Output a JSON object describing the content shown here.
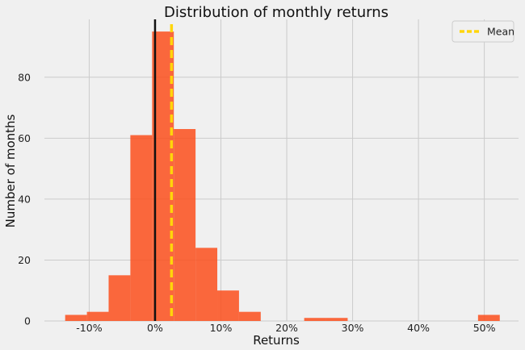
{
  "chart_data": {
    "type": "bar",
    "title": "Distribution of monthly returns",
    "xlabel": "Returns",
    "ylabel": "Number of months",
    "xlim": [
      -0.168,
      0.552
    ],
    "ylim": [
      0,
      99
    ],
    "x_ticks": [
      {
        "value": -0.1,
        "label": "-10%"
      },
      {
        "value": 0.0,
        "label": "0%"
      },
      {
        "value": 0.1,
        "label": "10%"
      },
      {
        "value": 0.2,
        "label": "20%"
      },
      {
        "value": 0.3,
        "label": "30%"
      },
      {
        "value": 0.4,
        "label": "40%"
      },
      {
        "value": 0.5,
        "label": "50%"
      }
    ],
    "y_ticks": [
      {
        "value": 0,
        "label": "0"
      },
      {
        "value": 20,
        "label": "20"
      },
      {
        "value": 40,
        "label": "40"
      },
      {
        "value": 60,
        "label": "60"
      },
      {
        "value": 80,
        "label": "80"
      }
    ],
    "bins": [
      {
        "x0": -0.1365,
        "x1": -0.1035,
        "count": 2
      },
      {
        "x0": -0.1035,
        "x1": -0.0705,
        "count": 3
      },
      {
        "x0": -0.0705,
        "x1": -0.0375,
        "count": 15
      },
      {
        "x0": -0.0375,
        "x1": -0.0045,
        "count": 61
      },
      {
        "x0": -0.0045,
        "x1": 0.0285,
        "count": 95
      },
      {
        "x0": 0.0285,
        "x1": 0.0615,
        "count": 63
      },
      {
        "x0": 0.0615,
        "x1": 0.0945,
        "count": 24
      },
      {
        "x0": 0.0945,
        "x1": 0.1275,
        "count": 10
      },
      {
        "x0": 0.1275,
        "x1": 0.1605,
        "count": 3
      },
      {
        "x0": 0.1605,
        "x1": 0.1935,
        "count": 0
      },
      {
        "x0": 0.1935,
        "x1": 0.2265,
        "count": 0
      },
      {
        "x0": 0.2265,
        "x1": 0.2595,
        "count": 1
      },
      {
        "x0": 0.2595,
        "x1": 0.2925,
        "count": 1
      },
      {
        "x0": 0.2925,
        "x1": 0.3255,
        "count": 0
      },
      {
        "x0": 0.3255,
        "x1": 0.3585,
        "count": 0
      },
      {
        "x0": 0.3585,
        "x1": 0.3915,
        "count": 0
      },
      {
        "x0": 0.3915,
        "x1": 0.4245,
        "count": 0
      },
      {
        "x0": 0.4245,
        "x1": 0.4575,
        "count": 0
      },
      {
        "x0": 0.4575,
        "x1": 0.4905,
        "count": 0
      },
      {
        "x0": 0.4905,
        "x1": 0.5235,
        "count": 2
      }
    ],
    "zero_line": 0.0,
    "mean_line": 0.025,
    "legend": {
      "position": "top-right",
      "entries": [
        "Mean"
      ]
    },
    "colors": {
      "bar": "#fc4f1c",
      "zero_line": "#111111",
      "mean_line": "#ffd60a",
      "grid": "#cbcbcb",
      "background": "#f0f0f0"
    },
    "grid": true
  }
}
